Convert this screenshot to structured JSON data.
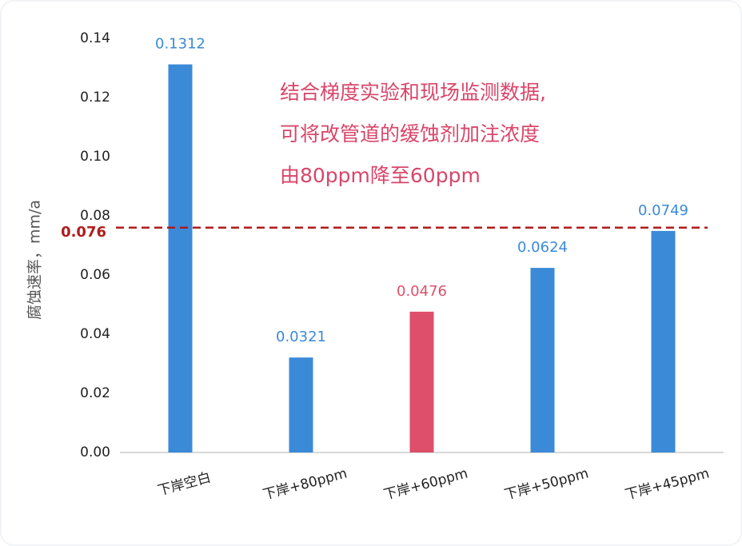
{
  "chart_data": {
    "type": "bar",
    "y_label": "腐蚀速率，mm/a",
    "categories": [
      "下岸空白",
      "下岸+80ppm",
      "下岸+60ppm",
      "下岸+50ppm",
      "下岸+45ppm"
    ],
    "values": [
      0.1312,
      0.0321,
      0.0476,
      0.0624,
      0.0749
    ],
    "colors": [
      "#3a8ad8",
      "#3a8ad8",
      "#de4f6a",
      "#3a8ad8",
      "#3a8ad8"
    ],
    "label_colors": [
      "#3a8ad8",
      "#3a8ad8",
      "#de4f6a",
      "#3a8ad8",
      "#3a8ad8"
    ],
    "ylim": [
      0,
      0.14
    ],
    "yticks": [
      {
        "value": 0,
        "label": "0.00"
      },
      {
        "value": 0.02,
        "label": "0.02"
      },
      {
        "value": 0.04,
        "label": "0.04"
      },
      {
        "value": 0.06,
        "label": "0.06"
      },
      {
        "value": 0.08,
        "label": "0.08"
      },
      {
        "value": 0.1,
        "label": "0.10"
      },
      {
        "value": 0.12,
        "label": "0.12"
      },
      {
        "value": 0.14,
        "label": "0.14"
      }
    ],
    "grid": false,
    "reference_line": {
      "value": 0.076,
      "color": "#b01c1c"
    },
    "annotation": {
      "lines": [
        "结合梯度实验和现场监测数据,",
        "可将改管道的缓蚀剂加注浓度",
        "由80ppm降至60ppm"
      ],
      "color": "#d9466a"
    }
  }
}
